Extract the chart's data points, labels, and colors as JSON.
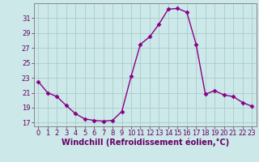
{
  "x": [
    0,
    1,
    2,
    3,
    4,
    5,
    6,
    7,
    8,
    9,
    10,
    11,
    12,
    13,
    14,
    15,
    16,
    17,
    18,
    19,
    20,
    21,
    22,
    23
  ],
  "y": [
    22.5,
    21.0,
    20.5,
    19.3,
    18.2,
    17.5,
    17.3,
    17.2,
    17.3,
    18.5,
    23.2,
    27.5,
    28.5,
    30.2,
    32.2,
    32.3,
    31.8,
    27.5,
    20.8,
    21.3,
    20.7,
    20.5,
    19.7,
    19.2
  ],
  "line_color": "#880088",
  "marker": "D",
  "markersize": 2.5,
  "linewidth": 1.0,
  "bg_color": "#cce8e8",
  "grid_color": "#aacccc",
  "xlabel": "Windchill (Refroidissement éolien,°C)",
  "xlabel_color": "#660066",
  "xlabel_fontsize": 7,
  "ytick_labels": [
    "17",
    "19",
    "21",
    "23",
    "25",
    "27",
    "29",
    "31"
  ],
  "yticks": [
    17,
    19,
    21,
    23,
    25,
    27,
    29,
    31
  ],
  "ylim": [
    16.5,
    33.0
  ],
  "xlim": [
    -0.5,
    23.5
  ],
  "xticks": [
    0,
    1,
    2,
    3,
    4,
    5,
    6,
    7,
    8,
    9,
    10,
    11,
    12,
    13,
    14,
    15,
    16,
    17,
    18,
    19,
    20,
    21,
    22,
    23
  ],
  "tick_fontsize": 6,
  "tick_color": "#660066",
  "spine_color": "#888888"
}
